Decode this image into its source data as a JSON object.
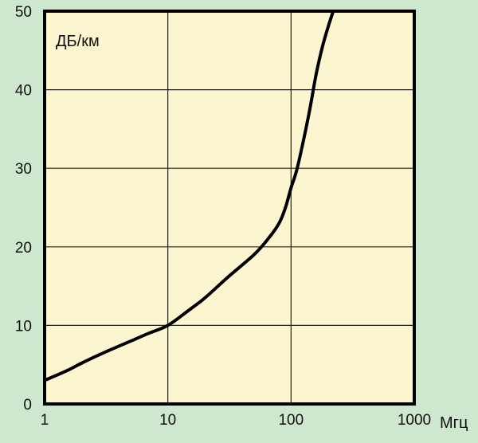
{
  "colors": {
    "page_background": "#cde8cf",
    "plot_background": "#fbf6cf",
    "frame": "#000000",
    "grid": "#222222",
    "curve": "#000000"
  },
  "chart_data": {
    "type": "line",
    "title": "",
    "xlabel": "Мгц",
    "ylabel": "ДБ/км",
    "x_scale": "log",
    "xlim": [
      1,
      1000
    ],
    "ylim": [
      0,
      50
    ],
    "x_ticks": [
      1,
      10,
      100,
      1000
    ],
    "x_tick_labels": [
      "1",
      "10",
      "100",
      "1000"
    ],
    "y_ticks": [
      0,
      10,
      20,
      30,
      40,
      50
    ],
    "y_tick_labels": [
      "0",
      "10",
      "20",
      "30",
      "40",
      "50"
    ],
    "grid": true,
    "series": [
      {
        "x": [
          1,
          1.5,
          2,
          3,
          5,
          7,
          10,
          15,
          20,
          30,
          50,
          65,
          80,
          90,
          100,
          110,
          120,
          140,
          160,
          180,
          200,
          220,
          230
        ],
        "y": [
          3.0,
          4.2,
          5.2,
          6.5,
          8.0,
          9.0,
          10.0,
          12.0,
          13.5,
          16.0,
          19.0,
          21.0,
          23.0,
          25.0,
          27.5,
          29.5,
          32.0,
          37.0,
          42.0,
          45.5,
          48.0,
          50.0,
          51.0
        ]
      }
    ]
  }
}
